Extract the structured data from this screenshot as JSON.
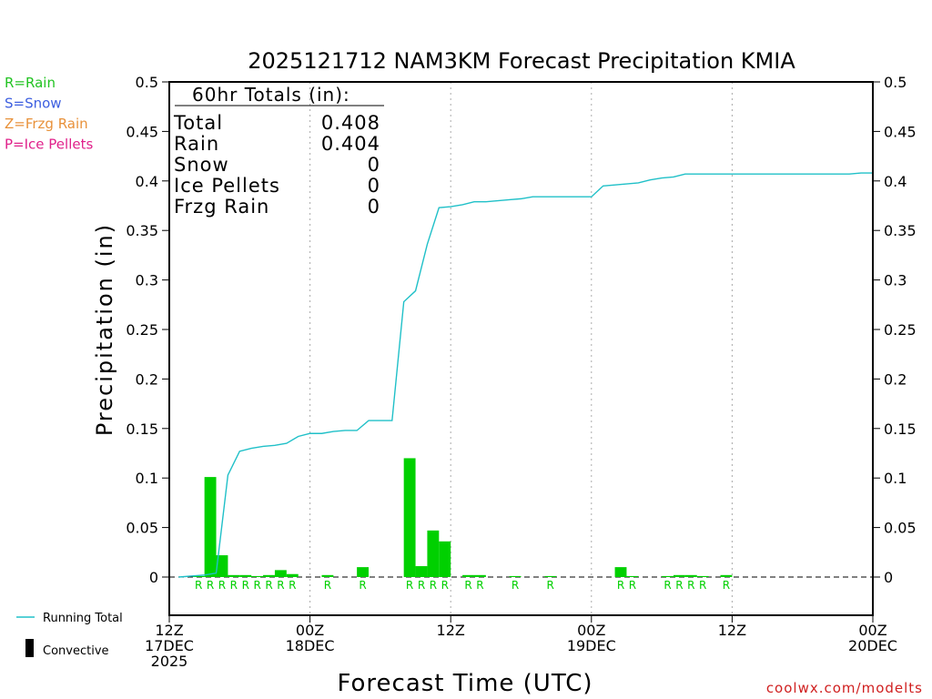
{
  "chart_data": {
    "type": "bar",
    "title": "2025121712 NAM3KM Forecast Precipitation KMIA",
    "xlabel": "Forecast Time (UTC)",
    "ylabel": "Precipitation (in)",
    "ylim": [
      -0.04,
      0.5
    ],
    "xlim_hours": [
      0,
      60
    ],
    "y_ticks": [
      "0.5",
      "0.45",
      "0.4",
      "0.35",
      "0.3",
      "0.25",
      "0.2",
      "0.15",
      "0.1",
      "0.05",
      "0"
    ],
    "y_tick_values": [
      0.5,
      0.45,
      0.4,
      0.35,
      0.3,
      0.25,
      0.2,
      0.15,
      0.1,
      0.05,
      0
    ],
    "x_ticks": [
      {
        "hour": 0,
        "lines": [
          "12Z",
          "17DEC",
          "2025"
        ]
      },
      {
        "hour": 12,
        "lines": [
          "00Z",
          "18DEC"
        ]
      },
      {
        "hour": 24,
        "lines": [
          "12Z"
        ]
      },
      {
        "hour": 36,
        "lines": [
          "00Z",
          "19DEC"
        ]
      },
      {
        "hour": 48,
        "lines": [
          "12Z"
        ]
      },
      {
        "hour": 60,
        "lines": [
          "00Z",
          "20DEC"
        ]
      }
    ],
    "gridlines_hours": [
      12,
      24,
      36,
      48
    ],
    "hourly_precip": [
      {
        "hour": 3,
        "value": 0.001,
        "ptype": "R"
      },
      {
        "hour": 4,
        "value": 0.101,
        "ptype": "R"
      },
      {
        "hour": 5,
        "value": 0.022,
        "ptype": "R"
      },
      {
        "hour": 6,
        "value": 0.002,
        "ptype": "R"
      },
      {
        "hour": 7,
        "value": 0.002,
        "ptype": "R"
      },
      {
        "hour": 8,
        "value": 0.001,
        "ptype": "R"
      },
      {
        "hour": 9,
        "value": 0.002,
        "ptype": "R"
      },
      {
        "hour": 10,
        "value": 0.007,
        "ptype": "R"
      },
      {
        "hour": 11,
        "value": 0.003,
        "ptype": "R"
      },
      {
        "hour": 14,
        "value": 0.002,
        "ptype": "R"
      },
      {
        "hour": 17,
        "value": 0.01,
        "ptype": "R"
      },
      {
        "hour": 21,
        "value": 0.12,
        "ptype": "R"
      },
      {
        "hour": 22,
        "value": 0.011,
        "ptype": "R"
      },
      {
        "hour": 23,
        "value": 0.047,
        "ptype": "R"
      },
      {
        "hour": 24,
        "value": 0.036,
        "ptype": "R"
      },
      {
        "hour": 26,
        "value": 0.002,
        "ptype": "R"
      },
      {
        "hour": 27,
        "value": 0.002,
        "ptype": "R"
      },
      {
        "hour": 30,
        "value": 0.001,
        "ptype": "R"
      },
      {
        "hour": 33,
        "value": 0.001,
        "ptype": "R"
      },
      {
        "hour": 39,
        "value": 0.01,
        "ptype": "R"
      },
      {
        "hour": 40,
        "value": 0.001,
        "ptype": "R"
      },
      {
        "hour": 43,
        "value": 0.001,
        "ptype": "R"
      },
      {
        "hour": 44,
        "value": 0.002,
        "ptype": "R"
      },
      {
        "hour": 45,
        "value": 0.002,
        "ptype": "R"
      },
      {
        "hour": 46,
        "value": 0.001,
        "ptype": "R"
      },
      {
        "hour": 48,
        "value": 0.002,
        "ptype": "R"
      }
    ],
    "running_total": {
      "name": "Running Total",
      "color": "#20c0c8",
      "points": [
        [
          0.8,
          0.0
        ],
        [
          3,
          0.002
        ],
        [
          4,
          0.004
        ],
        [
          5,
          0.103
        ],
        [
          6,
          0.127
        ],
        [
          7,
          0.13
        ],
        [
          8,
          0.132
        ],
        [
          9,
          0.133
        ],
        [
          10,
          0.135
        ],
        [
          11,
          0.142
        ],
        [
          12,
          0.145
        ],
        [
          13,
          0.145
        ],
        [
          14,
          0.147
        ],
        [
          15,
          0.148
        ],
        [
          16,
          0.148
        ],
        [
          17,
          0.158
        ],
        [
          18,
          0.158
        ],
        [
          19,
          0.158
        ],
        [
          20,
          0.278
        ],
        [
          21,
          0.289
        ],
        [
          22,
          0.336
        ],
        [
          23,
          0.373
        ],
        [
          24,
          0.374
        ],
        [
          25,
          0.376
        ],
        [
          26,
          0.379
        ],
        [
          27,
          0.379
        ],
        [
          28,
          0.38
        ],
        [
          29,
          0.381
        ],
        [
          30,
          0.382
        ],
        [
          31,
          0.384
        ],
        [
          32,
          0.384
        ],
        [
          33,
          0.384
        ],
        [
          34,
          0.384
        ],
        [
          35,
          0.384
        ],
        [
          36,
          0.384
        ],
        [
          37,
          0.395
        ],
        [
          38,
          0.396
        ],
        [
          39,
          0.397
        ],
        [
          40,
          0.398
        ],
        [
          41,
          0.401
        ],
        [
          42,
          0.403
        ],
        [
          43,
          0.404
        ],
        [
          44,
          0.407
        ],
        [
          45,
          0.407
        ],
        [
          46,
          0.407
        ],
        [
          47,
          0.407
        ],
        [
          48,
          0.407
        ],
        [
          49,
          0.407
        ],
        [
          50,
          0.407
        ],
        [
          51,
          0.407
        ],
        [
          52,
          0.407
        ],
        [
          53,
          0.407
        ],
        [
          54,
          0.407
        ],
        [
          55,
          0.407
        ],
        [
          56,
          0.407
        ],
        [
          57,
          0.407
        ],
        [
          58,
          0.407
        ],
        [
          59,
          0.408
        ],
        [
          60,
          0.408
        ]
      ]
    },
    "totals_box": {
      "heading": "60hr Totals (in):",
      "rows": [
        {
          "label": "Total",
          "value": "0.408"
        },
        {
          "label": "Rain",
          "value": "0.404"
        },
        {
          "label": "Snow",
          "value": "0"
        },
        {
          "label": "Ice Pellets",
          "value": "0"
        },
        {
          "label": "Frzg Rain",
          "value": "0"
        }
      ]
    },
    "ptype_legend": [
      {
        "text": "R=Rain",
        "color": "#22c322"
      },
      {
        "text": "S=Snow",
        "color": "#3d5fe0"
      },
      {
        "text": "Z=Frzg Rain",
        "color": "#e8913a"
      },
      {
        "text": "P=Ice Pellets",
        "color": "#e0208a"
      }
    ],
    "series_legend": {
      "running_total": "Running Total",
      "convective": "Convective"
    },
    "bar_color": "#00d000",
    "credit": "coolwx.com/modelts",
    "credit_color": "#d02020"
  }
}
